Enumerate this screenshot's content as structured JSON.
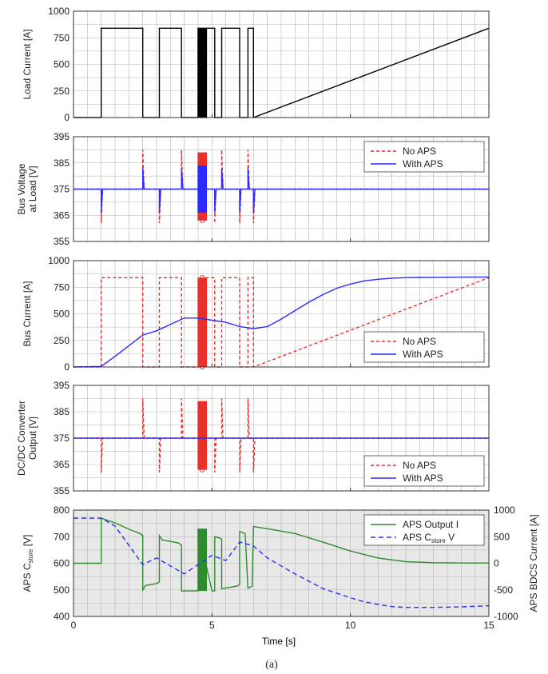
{
  "caption": "(a)",
  "xlabel": "Time [s]",
  "colors": {
    "black": "#000000",
    "red": "#e8302a",
    "blue": "#2b2bff",
    "green": "#2e8b2e",
    "grid": "#b3b3b3",
    "shade": "#e8e8e8"
  },
  "chart_data": [
    {
      "id": "load",
      "type": "line",
      "ylabel_lines": [
        "Load Current [A]"
      ],
      "xlim": [
        0,
        15
      ],
      "ylim": [
        0,
        1000
      ],
      "yticks": [
        0,
        250,
        500,
        750,
        1000
      ],
      "xticks": [
        0,
        5,
        10,
        15
      ],
      "grid": true,
      "series": [
        {
          "color": "black",
          "dash": "",
          "x": [
            0,
            1,
            1,
            2.5,
            2.5,
            3.1,
            3.1,
            3.9,
            3.9,
            4.5,
            4.5,
            4.6,
            4.6,
            4.65,
            4.65,
            4.75,
            4.75,
            4.8,
            4.8,
            5.1,
            5.1,
            5.35,
            5.35,
            6.0,
            6.0,
            6.3,
            6.3,
            6.5,
            6.5,
            15
          ],
          "y": [
            0,
            0,
            840,
            840,
            0,
            0,
            840,
            840,
            0,
            0,
            840,
            840,
            0,
            0,
            840,
            840,
            0,
            0,
            840,
            840,
            0,
            0,
            840,
            840,
            0,
            0,
            840,
            840,
            0,
            840
          ]
        }
      ],
      "burst": {
        "x0": 4.5,
        "x1": 4.8,
        "y0": 0,
        "y1": 840,
        "color": "black"
      },
      "legend": []
    },
    {
      "id": "busv",
      "type": "line",
      "ylabel_lines": [
        "Bus Voltage",
        "at Load [V]"
      ],
      "xlim": [
        0,
        15
      ],
      "ylim": [
        355,
        395
      ],
      "yticks": [
        355,
        365,
        375,
        385,
        395
      ],
      "xticks": [
        0,
        5,
        10,
        15
      ],
      "grid": true,
      "series": [
        {
          "name": "No APS",
          "color": "red",
          "dash": "4,3",
          "x": [
            0,
            1,
            1,
            1.05,
            2.5,
            2.5,
            2.55,
            3.1,
            3.1,
            3.15,
            3.9,
            3.9,
            3.95,
            5.1,
            5.1,
            5.15,
            5.35,
            5.35,
            5.4,
            6.0,
            6.0,
            6.05,
            6.3,
            6.3,
            6.35,
            6.5,
            6.5,
            6.55,
            15
          ],
          "y": [
            375,
            375,
            362,
            375,
            375,
            390,
            375,
            375,
            362,
            375,
            375,
            390,
            375,
            375,
            362,
            375,
            375,
            390,
            375,
            375,
            362,
            375,
            375,
            390,
            375,
            375,
            362,
            375,
            375
          ]
        },
        {
          "name": "With APS",
          "color": "blue",
          "dash": "",
          "x": [
            0,
            1,
            1,
            1.05,
            2.5,
            2.5,
            2.55,
            3.1,
            3.1,
            3.15,
            3.9,
            3.9,
            3.95,
            5.1,
            5.1,
            5.15,
            5.35,
            5.35,
            5.4,
            6.0,
            6.0,
            6.05,
            6.3,
            6.3,
            6.35,
            6.5,
            6.5,
            6.55,
            15
          ],
          "y": [
            375,
            375,
            366,
            375,
            375,
            383,
            375,
            375,
            366,
            375,
            375,
            383,
            375,
            375,
            366,
            375,
            375,
            383,
            375,
            375,
            366,
            375,
            375,
            383,
            375,
            375,
            366,
            375,
            375
          ]
        }
      ],
      "burst": {
        "x0": 4.5,
        "x1": 4.8,
        "y0": 363,
        "y1": 389,
        "color": "red",
        "inner": {
          "y0": 366,
          "y1": 384,
          "color": "blue"
        }
      },
      "legend": [
        {
          "label": "No APS",
          "color": "red",
          "dash": "4,3"
        },
        {
          "label": "With APS",
          "color": "blue",
          "dash": ""
        }
      ],
      "legend_pos": "top-right"
    },
    {
      "id": "busi",
      "type": "line",
      "ylabel_lines": [
        "Bus Current [A]"
      ],
      "xlim": [
        0,
        15
      ],
      "ylim": [
        0,
        1000
      ],
      "yticks": [
        0,
        250,
        500,
        750,
        1000
      ],
      "xticks": [
        0,
        5,
        10,
        15
      ],
      "grid": true,
      "series": [
        {
          "name": "No APS",
          "color": "red",
          "dash": "4,3",
          "x": [
            0,
            1,
            1,
            2.5,
            2.5,
            3.1,
            3.1,
            3.9,
            3.9,
            4.5,
            4.8,
            5.1,
            5.1,
            5.35,
            5.35,
            6.0,
            6.0,
            6.3,
            6.3,
            6.5,
            6.5,
            15
          ],
          "y": [
            0,
            0,
            840,
            840,
            0,
            0,
            840,
            840,
            0,
            0,
            840,
            840,
            0,
            0,
            840,
            840,
            0,
            0,
            840,
            840,
            0,
            840
          ]
        },
        {
          "name": "With APS",
          "color": "blue",
          "dash": "",
          "x": [
            0,
            1,
            1.5,
            2.0,
            2.5,
            3.0,
            3.5,
            4.0,
            4.5,
            5.0,
            5.5,
            6.0,
            6.5,
            7,
            7.5,
            8,
            8.5,
            9,
            9.5,
            10,
            10.5,
            11,
            11.5,
            12,
            12.5,
            13,
            14,
            15
          ],
          "y": [
            0,
            5,
            100,
            200,
            300,
            340,
            400,
            460,
            460,
            440,
            420,
            380,
            360,
            380,
            450,
            530,
            610,
            680,
            740,
            780,
            810,
            825,
            835,
            840,
            842,
            843,
            845,
            845
          ]
        }
      ],
      "burst": {
        "x0": 4.5,
        "x1": 4.8,
        "y0": 0,
        "y1": 840,
        "color": "red"
      },
      "legend": [
        {
          "label": "No APS",
          "color": "red",
          "dash": "4,3"
        },
        {
          "label": "With APS",
          "color": "blue",
          "dash": ""
        }
      ],
      "legend_pos": "bottom-right"
    },
    {
      "id": "dcdc",
      "type": "line",
      "ylabel_lines": [
        "DC/DC Converter",
        "Output [V]"
      ],
      "xlim": [
        0,
        15
      ],
      "ylim": [
        355,
        395
      ],
      "yticks": [
        355,
        365,
        375,
        385,
        395
      ],
      "xticks": [
        0,
        5,
        10,
        15
      ],
      "grid": true,
      "series": [
        {
          "name": "No APS",
          "color": "red",
          "dash": "4,3",
          "x": [
            0,
            1,
            1,
            1.05,
            2.5,
            2.5,
            2.55,
            3.1,
            3.1,
            3.15,
            3.9,
            3.9,
            3.95,
            5.1,
            5.1,
            5.15,
            5.35,
            5.35,
            5.4,
            6.0,
            6.0,
            6.05,
            6.3,
            6.3,
            6.35,
            6.5,
            6.5,
            6.55,
            15
          ],
          "y": [
            375,
            375,
            362,
            375,
            375,
            390,
            375,
            375,
            362,
            375,
            375,
            390,
            375,
            375,
            362,
            375,
            375,
            390,
            375,
            375,
            362,
            375,
            375,
            390,
            375,
            375,
            362,
            375,
            375
          ]
        },
        {
          "name": "With APS",
          "color": "blue",
          "dash": "",
          "x": [
            0,
            15
          ],
          "y": [
            375,
            375
          ]
        }
      ],
      "burst": {
        "x0": 4.5,
        "x1": 4.8,
        "y0": 363,
        "y1": 389,
        "color": "red"
      },
      "legend": [
        {
          "label": "No APS",
          "color": "red",
          "dash": "4,3"
        },
        {
          "label": "With APS",
          "color": "blue",
          "dash": ""
        }
      ],
      "legend_pos": "bottom-right"
    },
    {
      "id": "aps",
      "type": "line",
      "ylabel_lines": [
        "APS C",
        "store",
        " [V]"
      ],
      "ylabel_right": "APS BDCS Current [A]",
      "shaded": true,
      "xlim": [
        0,
        15
      ],
      "ylim": [
        400,
        800
      ],
      "yticks": [
        400,
        500,
        600,
        700,
        800
      ],
      "ylim_right": [
        -1000,
        1000
      ],
      "yticks_right": [
        -1000,
        -500,
        0,
        500,
        1000
      ],
      "xticks": [
        0,
        5,
        10,
        15
      ],
      "grid": true,
      "series": [
        {
          "name": "APS Output I",
          "color": "green",
          "dash": "",
          "axis": "right",
          "x": [
            0,
            1,
            1,
            1.5,
            2.0,
            2.4,
            2.5,
            2.5,
            2.6,
            3.0,
            3.1,
            3.1,
            3.2,
            3.8,
            3.9,
            3.9,
            4.4,
            4.5,
            4.5,
            5.0,
            5.1,
            5.1,
            5.3,
            5.35,
            5.35,
            5.9,
            6.0,
            6.0,
            6.2,
            6.3,
            6.3,
            6.45,
            6.5,
            6.5,
            7,
            8,
            9,
            10,
            11,
            12,
            13,
            14,
            15
          ],
          "y": [
            0,
            0,
            850,
            760,
            640,
            560,
            520,
            -500,
            -420,
            -380,
            -350,
            520,
            440,
            380,
            340,
            -520,
            -520,
            -520,
            650,
            -520,
            -520,
            500,
            470,
            450,
            -480,
            -430,
            -400,
            600,
            560,
            -480,
            -470,
            -430,
            650,
            690,
            650,
            560,
            400,
            230,
            100,
            30,
            10,
            5,
            5
          ]
        },
        {
          "name": "APS C_store V",
          "color": "blue",
          "dash": "6,4",
          "axis": "left",
          "x": [
            0,
            1,
            1.5,
            2.5,
            3.0,
            3.5,
            4.0,
            4.5,
            5.0,
            5.5,
            6.0,
            6.5,
            7,
            8,
            9,
            10,
            10.5,
            11,
            11.5,
            12,
            13,
            14,
            15
          ],
          "y": [
            770,
            770,
            740,
            595,
            620,
            590,
            560,
            595,
            630,
            610,
            680,
            665,
            620,
            560,
            505,
            470,
            455,
            445,
            437,
            434,
            434,
            436,
            440
          ]
        }
      ],
      "burst": {
        "x0": 4.5,
        "x1": 4.8,
        "y0": -520,
        "y1": 650,
        "color": "green",
        "axis": "right"
      },
      "legend": [
        {
          "label": "APS Output I",
          "color": "green",
          "dash": ""
        },
        {
          "label_parts": [
            "APS C",
            "store",
            " V"
          ],
          "color": "blue",
          "dash": "6,4"
        }
      ],
      "legend_pos": "top-right"
    }
  ]
}
